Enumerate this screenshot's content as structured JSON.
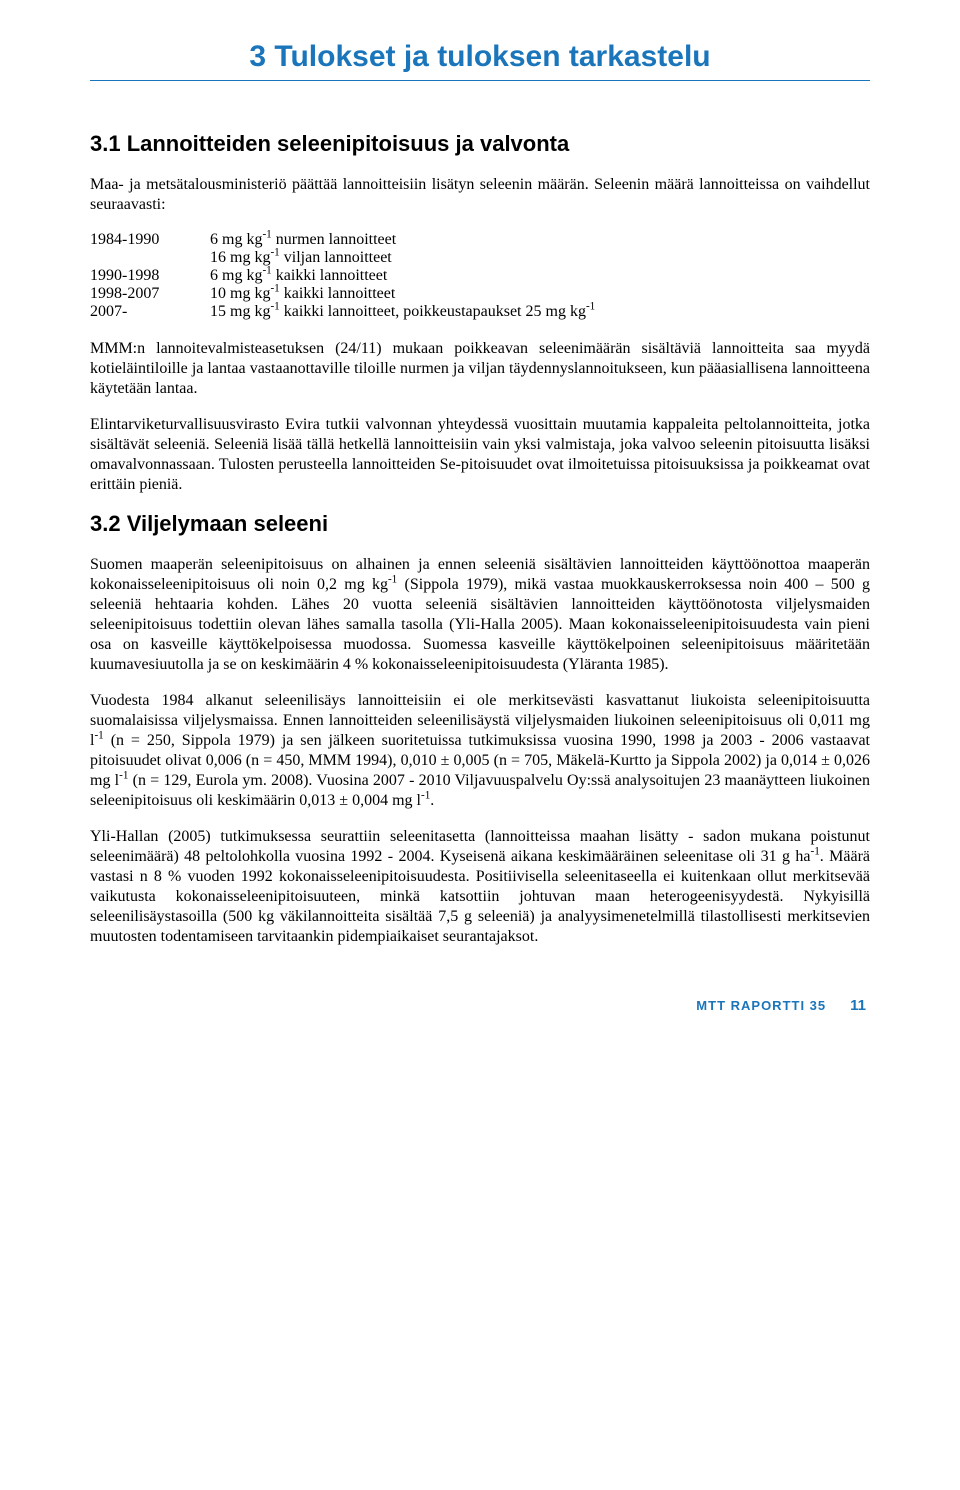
{
  "colors": {
    "accent": "#1a75bb",
    "text": "#000000",
    "background": "#ffffff"
  },
  "chapter": {
    "title": "3 Tulokset ja tuloksen tarkastelu"
  },
  "s31": {
    "title": "3.1 Lannoitteiden seleenipitoisuus ja valvonta",
    "p1": "Maa- ja metsätalousministeriö päättää lannoitteisiin lisätyn seleenin määrän. Seleenin määrä lannoitteissa on vaihdellut seuraavasti:",
    "doses": {
      "rows": [
        {
          "years": "1984-1990",
          "d1a": "6 mg kg",
          "d1b": " nurmen lannoitteet",
          "d2a": "16 mg kg",
          "d2b": " viljan lannoitteet"
        },
        {
          "years": "1990-1998",
          "d1a": "6 mg kg",
          "d1b": " kaikki lannoitteet"
        },
        {
          "years": "1998-2007",
          "d1a": "10 mg kg",
          "d1b": " kaikki lannoitteet"
        },
        {
          "years": "2007-",
          "d1a": "15 mg kg",
          "d1b": " kaikki lannoitteet, poikkeustapaukset 25 mg kg"
        }
      ],
      "sup": "-1"
    },
    "p2": "MMM:n lannoitevalmisteasetuksen (24/11) mukaan poikkeavan seleenimäärän sisältäviä lannoitteita saa myydä kotieläintiloille ja lantaa vastaanottaville tiloille nurmen ja viljan täydennyslannoitukseen, kun pääasiallisena lannoitteena käytetään lantaa.",
    "p3": "Elintarviketurvallisuusvirasto Evira tutkii valvonnan yhteydessä vuosittain muutamia kappaleita peltolannoitteita, jotka sisältävät seleeniä. Seleeniä lisää tällä hetkellä lannoitteisiin vain yksi valmistaja, joka valvoo seleenin pitoisuutta lisäksi omavalvonnassaan. Tulosten perusteella lannoitteiden Se-pitoisuudet ovat ilmoitetuissa pitoisuuksissa ja poikkeamat ovat erittäin pieniä."
  },
  "s32": {
    "title": "3.2 Viljelymaan seleeni",
    "p1a": "Suomen maaperän seleenipitoisuus on alhainen ja ennen seleeniä sisältävien lannoitteiden käyttöönottoa maaperän kokonaisseleenipitoisuus oli noin 0,2 mg kg",
    "p1b": " (Sippola 1979), mikä vastaa muokkauskerroksessa noin 400 – 500 g seleeniä hehtaaria kohden. Lähes 20 vuotta seleeniä sisältävien lannoitteiden käyttöönotosta viljelysmaiden seleenipitoisuus todettiin olevan lähes samalla tasolla (Yli-Halla 2005). Maan kokonaisseleenipitoisuudesta vain pieni osa on kasveille käyttökelpoisessa muodossa. Suomessa kasveille käyttökelpoinen seleenipitoisuus määritetään kuumavesiuutolla ja se on keskimäärin 4 % kokonaisseleenipitoisuudesta (Yläranta 1985).",
    "p2a": "Vuodesta 1984 alkanut seleenilisäys lannoitteisiin ei ole merkitsevästi kasvattanut liukoista seleenipitoisuutta suomalaisissa viljelysmaissa. Ennen lannoitteiden seleenilisäystä viljelysmaiden liukoinen seleenipitoisuus oli 0,011 mg l",
    "p2b": " (n = 250, Sippola 1979) ja sen jälkeen suoritetuissa tutkimuksissa vuosina 1990, 1998 ja 2003 - 2006 vastaavat pitoisuudet olivat 0,006 (n = 450, MMM 1994), 0,010 ± 0,005 (n = 705, Mäkelä-Kurtto ja Sippola 2002) ja 0,014 ± 0,026 mg l",
    "p2c": " (n = 129, Eurola ym. 2008). Vuosina 2007 - 2010 Viljavuuspalvelu Oy:ssä analysoitujen 23 maanäytteen liukoinen seleenipitoisuus oli keskimäärin 0,013 ± 0,004 mg l",
    "p2d": ".",
    "p3a": "Yli-Hallan (2005) tutkimuksessa seurattiin seleenitasetta (lannoitteissa maahan lisätty - sadon mukana poistunut seleenimäärä) 48 peltolohkolla vuosina 1992 - 2004. Kyseisenä aikana keskimääräinen seleenitase oli 31 g ha",
    "p3b": ". Määrä vastasi n 8 % vuoden 1992 kokonaisseleenipitoisuudesta. Positiivisella seleenitaseella ei kuitenkaan ollut merkitsevää vaikutusta kokonaisseleenipitoisuuteen, minkä katsottiin johtuvan maan heterogeenisyydestä. Nykyisillä seleenilisäystasoilla (500 kg väkilannoitteita sisältää 7,5 g seleeniä) ja analyysimenetelmillä tilastollisesti merkitsevien muutosten todentamiseen tarvitaankin pidempiaikaiset seurantajaksot."
  },
  "footer": {
    "brand": "MTT RAPORTTI 35",
    "page": "11"
  }
}
